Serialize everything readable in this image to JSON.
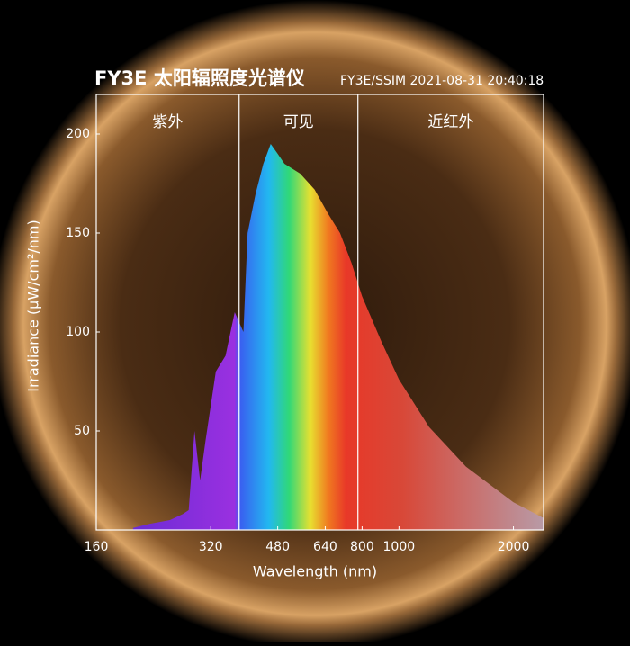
{
  "chart_data": {
    "type": "area",
    "title": "FY3E 太阳辐照度光谱仪",
    "subtitle": "FY3E/SSIM 2021-08-31 20:40:18",
    "x_label": "Wavelength (nm)",
    "y_label": "Irradiance (μW/cm²/nm)",
    "x_scale": "log",
    "xlim": [
      160,
      2400
    ],
    "xticks": [
      160,
      320,
      480,
      640,
      800,
      1000,
      2000
    ],
    "ylim": [
      0,
      220
    ],
    "yticks": [
      50,
      100,
      150,
      200
    ],
    "regions": [
      {
        "label": "紫外",
        "xlim": [
          160,
          380
        ]
      },
      {
        "label": "可见",
        "xlim": [
          380,
          780
        ]
      },
      {
        "label": "近红外",
        "xlim": [
          780,
          2400
        ]
      }
    ],
    "x": [
      200,
      220,
      250,
      270,
      280,
      290,
      300,
      310,
      330,
      350,
      370,
      390,
      400,
      420,
      440,
      460,
      480,
      500,
      550,
      600,
      650,
      700,
      750,
      800,
      900,
      1000,
      1200,
      1500,
      2000,
      2400
    ],
    "values": [
      1,
      3,
      5,
      8,
      10,
      50,
      25,
      45,
      80,
      88,
      110,
      100,
      150,
      170,
      185,
      195,
      190,
      185,
      180,
      172,
      160,
      150,
      135,
      118,
      95,
      76,
      52,
      32,
      14,
      6
    ]
  }
}
